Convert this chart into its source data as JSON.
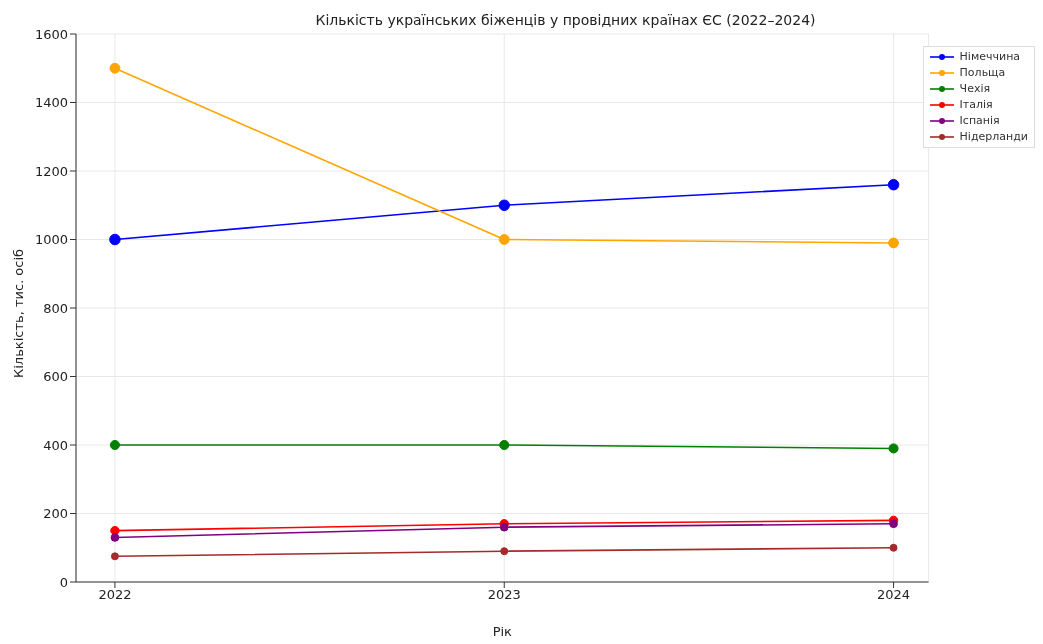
{
  "chart_data": {
    "type": "line",
    "title": "Кількість українських біженців у провідних країнах ЄС (2022–2024)",
    "xlabel": "Рік",
    "ylabel": "Кількість, тис. осіб",
    "x": [
      2022,
      2023,
      2024
    ],
    "xlim": [
      2021.9,
      2024.09
    ],
    "xticks": [
      2022,
      2023,
      2024
    ],
    "ylim": [
      0,
      1600
    ],
    "yticks": [
      0,
      200,
      400,
      600,
      800,
      1000,
      1200,
      1400,
      1600
    ],
    "grid": true,
    "legend": "top right",
    "marker": "circle",
    "series": [
      {
        "name": "Німеччина",
        "color": "#0000ff",
        "values": [
          1000,
          1100,
          1160
        ]
      },
      {
        "name": "Польща",
        "color": "#ffa500",
        "values": [
          1500,
          1000,
          990
        ]
      },
      {
        "name": "Чехія",
        "color": "#008000",
        "values": [
          400,
          400,
          390
        ]
      },
      {
        "name": "Італія",
        "color": "#ff0000",
        "values": [
          150,
          170,
          180
        ]
      },
      {
        "name": "Іспанія",
        "color": "#800080",
        "values": [
          130,
          160,
          170
        ]
      },
      {
        "name": "Нідерланди",
        "color": "#a52a2a",
        "values": [
          75,
          90,
          100
        ]
      }
    ]
  }
}
